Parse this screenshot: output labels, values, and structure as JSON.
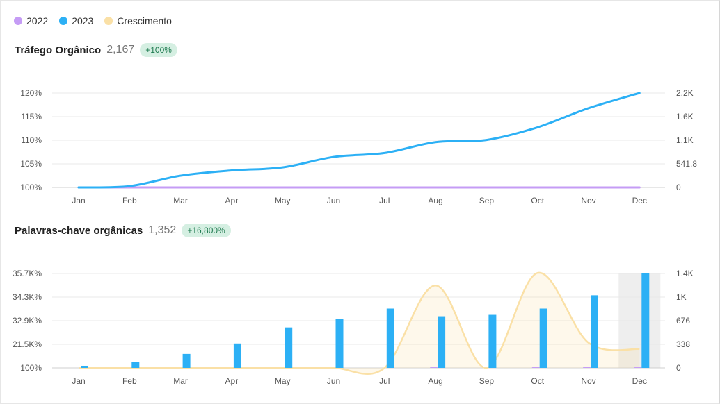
{
  "legend": [
    {
      "label": "2022",
      "color": "#c59cf5"
    },
    {
      "label": "2023",
      "color": "#2cb0f5"
    },
    {
      "label": "Crescimento",
      "color": "#fae0a6"
    }
  ],
  "sections": [
    {
      "title": "Tráfego Orgânico",
      "value": "2,167",
      "badge": "+100%"
    },
    {
      "title": "Palavras-chave orgânicas",
      "value": "1,352",
      "badge": "+16,800%"
    }
  ],
  "chart_data": [
    {
      "type": "line",
      "title": "Tráfego Orgânico",
      "categories": [
        "Jan",
        "Feb",
        "Mar",
        "Apr",
        "May",
        "Jun",
        "Jul",
        "Aug",
        "Sep",
        "Oct",
        "Nov",
        "Dec"
      ],
      "y_left_ticks": [
        "100%",
        "105%",
        "110%",
        "115%",
        "120%"
      ],
      "y_right_ticks": [
        "0",
        "541.8",
        "1.1K",
        "1.6K",
        "2.2K"
      ],
      "y_right_max": 2167,
      "series": [
        {
          "name": "2022",
          "color": "#c59cf5",
          "values": [
            0,
            0,
            0,
            0,
            0,
            0,
            0,
            0,
            0,
            0,
            0,
            0
          ]
        },
        {
          "name": "2023",
          "color": "#2cb0f5",
          "values": [
            0,
            30,
            270,
            390,
            460,
            700,
            790,
            1040,
            1090,
            1380,
            1820,
            2167
          ]
        }
      ],
      "grid": true
    },
    {
      "type": "bar",
      "title": "Palavras-chave orgânicas",
      "categories": [
        "Jan",
        "Feb",
        "Mar",
        "Apr",
        "May",
        "Jun",
        "Jul",
        "Aug",
        "Sep",
        "Oct",
        "Nov",
        "Dec"
      ],
      "y_left_ticks": [
        "100%",
        "21.5K%",
        "32.9K%",
        "34.3K%",
        "35.7K%"
      ],
      "y_right_ticks": [
        "0",
        "338",
        "676",
        "1K",
        "1.4K"
      ],
      "y_right_max": 1352,
      "series": [
        {
          "name": "2022",
          "color": "#c59cf5",
          "values": [
            0,
            0,
            0,
            0,
            0,
            0,
            0,
            8,
            0,
            8,
            8,
            8
          ]
        },
        {
          "name": "2023",
          "color": "#2cb0f5",
          "values": [
            30,
            80,
            200,
            350,
            580,
            700,
            850,
            740,
            760,
            850,
            1040,
            1352
          ]
        },
        {
          "name": "Crescimento",
          "color": "#fae0a6",
          "values": [
            0,
            0,
            0,
            0,
            0,
            0,
            0,
            1180,
            0,
            1360,
            360,
            270
          ]
        }
      ],
      "highlighted_category": "Dec",
      "grid": true
    }
  ]
}
